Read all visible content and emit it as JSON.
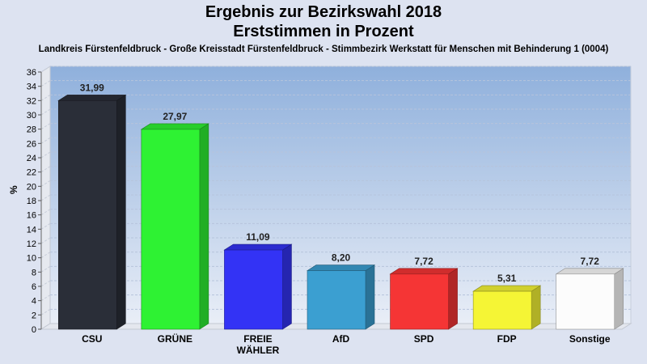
{
  "chart_data": {
    "type": "bar",
    "title": "Ergebnis zur Bezirkswahl 2018",
    "subtitle": "Erststimmen in Prozent",
    "description": "Landkreis Fürstenfeldbruck - Große Kreisstadt Fürstenfeldbruck - Stimmbezirk Werkstatt für Menschen mit Behinderung 1 (0004)",
    "ylabel": "%",
    "xlabel": "",
    "ylim": [
      0,
      36
    ],
    "yticks": [
      0,
      2,
      4,
      6,
      8,
      10,
      12,
      14,
      16,
      18,
      20,
      22,
      24,
      26,
      28,
      30,
      32,
      34,
      36
    ],
    "grid": true,
    "categories": [
      "CSU",
      "GRÜNE",
      "FREIE WÄHLER",
      "AfD",
      "SPD",
      "FDP",
      "Sonstige"
    ],
    "category_lines": [
      [
        "CSU"
      ],
      [
        "GRÜNE"
      ],
      [
        "FREIE",
        "WÄHLER"
      ],
      [
        "AfD"
      ],
      [
        "SPD"
      ],
      [
        "FDP"
      ],
      [
        "Sonstige"
      ]
    ],
    "values": [
      31.99,
      27.97,
      11.09,
      8.2,
      7.72,
      5.31,
      7.72
    ],
    "value_labels": [
      "31,99",
      "27,97",
      "11,09",
      "8,20",
      "7,72",
      "5,31",
      "7,72"
    ],
    "colors": [
      "#2a2e38",
      "#2ef233",
      "#3333f5",
      "#3b9fd1",
      "#f53535",
      "#f5f535",
      "#fcfcfc"
    ]
  }
}
